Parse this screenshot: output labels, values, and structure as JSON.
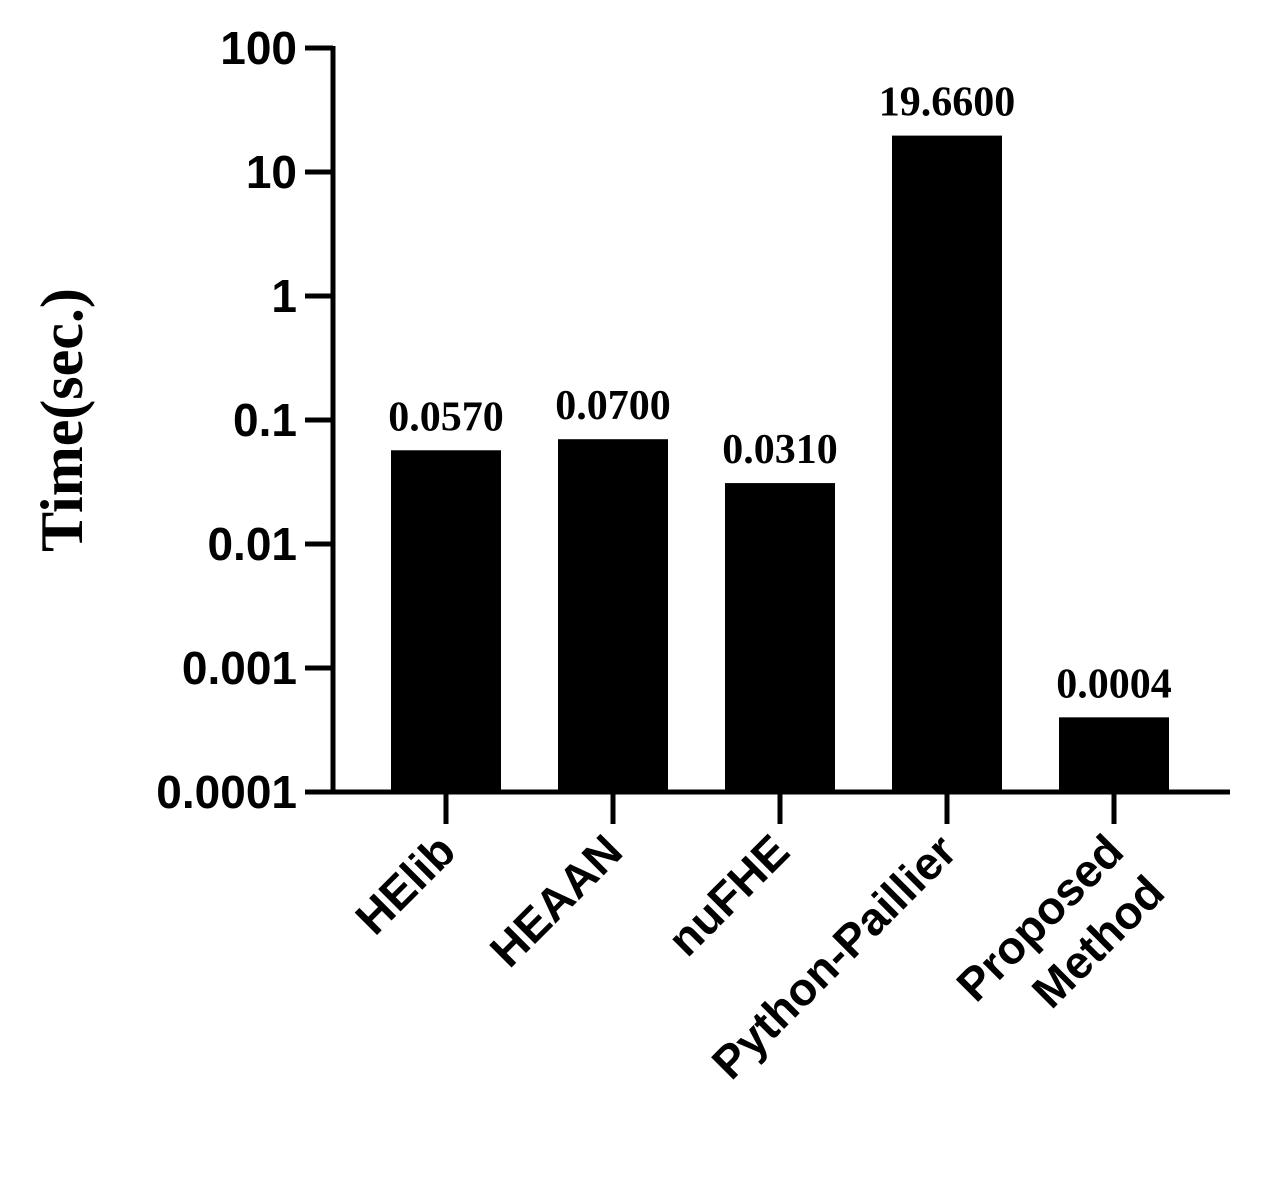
{
  "chart_data": {
    "type": "bar",
    "ylabel": "Time(sec.)",
    "yscale": "log",
    "ylim": [
      0.0001,
      100
    ],
    "yticks": [
      "100",
      "10",
      "1",
      "0.1",
      "0.01",
      "0.001",
      "0.0001"
    ],
    "categories": [
      {
        "lines": [
          "HElib"
        ]
      },
      {
        "lines": [
          "HEAAN"
        ]
      },
      {
        "lines": [
          "nuFHE"
        ]
      },
      {
        "lines": [
          "Python-Paillier"
        ]
      },
      {
        "lines": [
          "Proposed",
          "Method"
        ]
      }
    ],
    "values": [
      0.057,
      0.07,
      0.031,
      19.66,
      0.0004
    ],
    "data_labels": [
      "0.0570",
      "0.0700",
      "0.0310",
      "19.6600",
      "0.0004"
    ],
    "bar_color": "#000000",
    "grid": false,
    "legend": "none"
  }
}
